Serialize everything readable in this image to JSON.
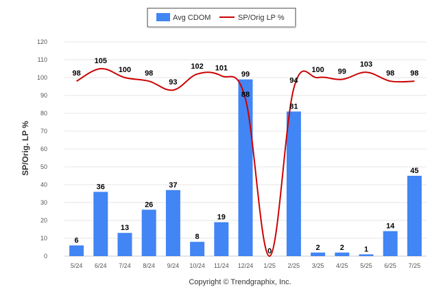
{
  "chart_data": {
    "type": "bar",
    "categories": [
      "5/24",
      "6/24",
      "7/24",
      "8/24",
      "9/24",
      "10/24",
      "11/24",
      "12/24",
      "1/25",
      "2/25",
      "3/25",
      "4/25",
      "5/25",
      "6/25",
      "7/25"
    ],
    "series": [
      {
        "name": "Avg CDOM",
        "type": "bar",
        "color": "#4285f4",
        "values": [
          6,
          36,
          13,
          26,
          37,
          8,
          19,
          99,
          0,
          81,
          2,
          2,
          1,
          14,
          45
        ]
      },
      {
        "name": "SP/Orig LP %",
        "type": "line",
        "color": "#cc0000",
        "values": [
          98,
          105,
          100,
          98,
          93,
          102,
          101,
          88,
          0,
          94,
          100,
          99,
          103,
          98,
          98
        ]
      }
    ],
    "ylabel": "SP/Orig. LP %",
    "xlabel": "",
    "ylim": [
      0,
      120
    ],
    "yticks": [
      0,
      10,
      20,
      30,
      40,
      50,
      60,
      70,
      80,
      90,
      100,
      110,
      120
    ],
    "grid": true,
    "legend_position": "top-center",
    "bar_labels": [
      "6",
      "36",
      "13",
      "26",
      "37",
      "8",
      "19",
      "99",
      "",
      "81",
      "2",
      "2",
      "1",
      "14",
      "45"
    ],
    "line_labels": [
      "98",
      "105",
      "100",
      "98",
      "93",
      "102",
      "101",
      "88",
      "0",
      "94",
      "100",
      "99",
      "103",
      "98",
      "98"
    ]
  },
  "footer": {
    "copyright": "Copyright © Trendgraphix, Inc."
  }
}
